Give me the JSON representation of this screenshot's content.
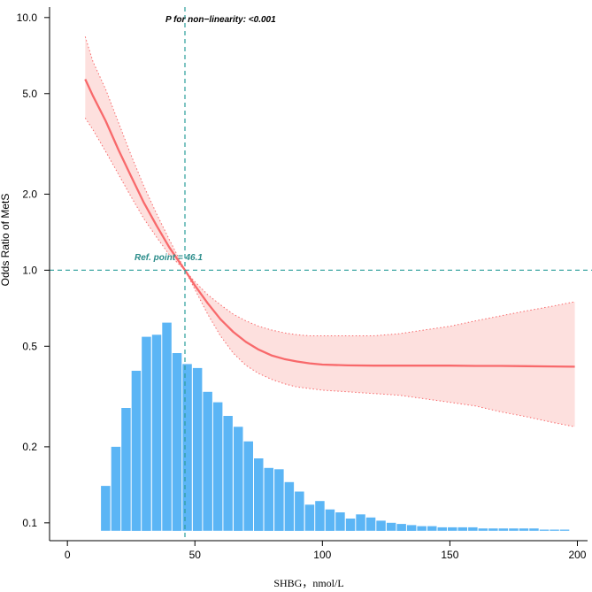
{
  "chart_data": {
    "type": "line",
    "title": "",
    "xlabel": "SHBG，nmol/L",
    "ylabel": "Odds Ratio of MetS",
    "xlim": [
      -7,
      204
    ],
    "ylim": [
      0.085,
      11.0
    ],
    "y_scale": "log",
    "x_ticks": [
      0,
      50,
      100,
      150,
      200
    ],
    "x_tick_labels": [
      "0",
      "50",
      "100",
      "150",
      "200"
    ],
    "y_ticks": [
      0.1,
      0.2,
      0.5,
      1.0,
      2.0,
      5.0,
      10.0
    ],
    "y_tick_labels": [
      "0.1",
      "0.2",
      "0.5",
      "1.0",
      "2.0",
      "5.0",
      "10.0"
    ],
    "annotation": "P for non−linearity: <0.001",
    "ref_label": "Ref. point = 46.1",
    "ref_x": 46.1,
    "ref_y": 1.0,
    "colors": {
      "curve": "#F8696B",
      "band": "#FDE0DE",
      "histogram": "#5BB5F5",
      "reference": "#2A9D9A",
      "annotation_ref": "#2A8C8A"
    },
    "curve": {
      "x": [
        7,
        10,
        15,
        20,
        25,
        30,
        35,
        40,
        46.1,
        50,
        55,
        60,
        65,
        70,
        75,
        80,
        85,
        90,
        95,
        100,
        110,
        120,
        130,
        140,
        150,
        160,
        170,
        180,
        190,
        199
      ],
      "y": [
        5.7,
        4.9,
        3.9,
        3.0,
        2.35,
        1.85,
        1.5,
        1.23,
        1.0,
        0.87,
        0.74,
        0.64,
        0.57,
        0.52,
        0.485,
        0.46,
        0.445,
        0.435,
        0.428,
        0.423,
        0.42,
        0.419,
        0.419,
        0.419,
        0.419,
        0.418,
        0.418,
        0.417,
        0.416,
        0.415
      ],
      "lower": [
        4.0,
        3.6,
        2.95,
        2.4,
        1.95,
        1.6,
        1.35,
        1.15,
        1.0,
        0.84,
        0.67,
        0.55,
        0.47,
        0.42,
        0.39,
        0.37,
        0.355,
        0.345,
        0.34,
        0.335,
        0.33,
        0.325,
        0.32,
        0.31,
        0.3,
        0.29,
        0.275,
        0.263,
        0.25,
        0.24
      ],
      "upper": [
        8.4,
        6.7,
        5.2,
        3.85,
        2.85,
        2.15,
        1.67,
        1.32,
        1.0,
        0.9,
        0.8,
        0.73,
        0.67,
        0.63,
        0.6,
        0.58,
        0.565,
        0.555,
        0.55,
        0.55,
        0.55,
        0.55,
        0.56,
        0.58,
        0.6,
        0.63,
        0.66,
        0.69,
        0.72,
        0.75
      ]
    },
    "histogram": {
      "bin_starts": [
        13,
        17,
        21,
        25,
        29,
        33,
        37,
        41,
        45,
        49,
        53,
        57,
        61,
        65,
        69,
        73,
        77,
        81,
        85,
        89,
        93,
        97,
        101,
        105,
        109,
        113,
        117,
        121,
        125,
        129,
        133,
        137,
        141,
        145,
        149,
        153,
        157,
        161,
        165,
        169,
        173,
        177,
        181,
        185,
        189,
        193
      ],
      "bin_width": 4,
      "heights": [
        0.14,
        0.2,
        0.285,
        0.4,
        0.545,
        0.555,
        0.62,
        0.47,
        0.425,
        0.41,
        0.33,
        0.3,
        0.265,
        0.24,
        0.21,
        0.18,
        0.165,
        0.163,
        0.145,
        0.133,
        0.118,
        0.122,
        0.113,
        0.11,
        0.104,
        0.108,
        0.105,
        0.102,
        0.1,
        0.099,
        0.098,
        0.097,
        0.097,
        0.096,
        0.096,
        0.096,
        0.096,
        0.095,
        0.095,
        0.095,
        0.095,
        0.095,
        0.095,
        0.094,
        0.094,
        0.094
      ],
      "base": 0.093
    }
  }
}
